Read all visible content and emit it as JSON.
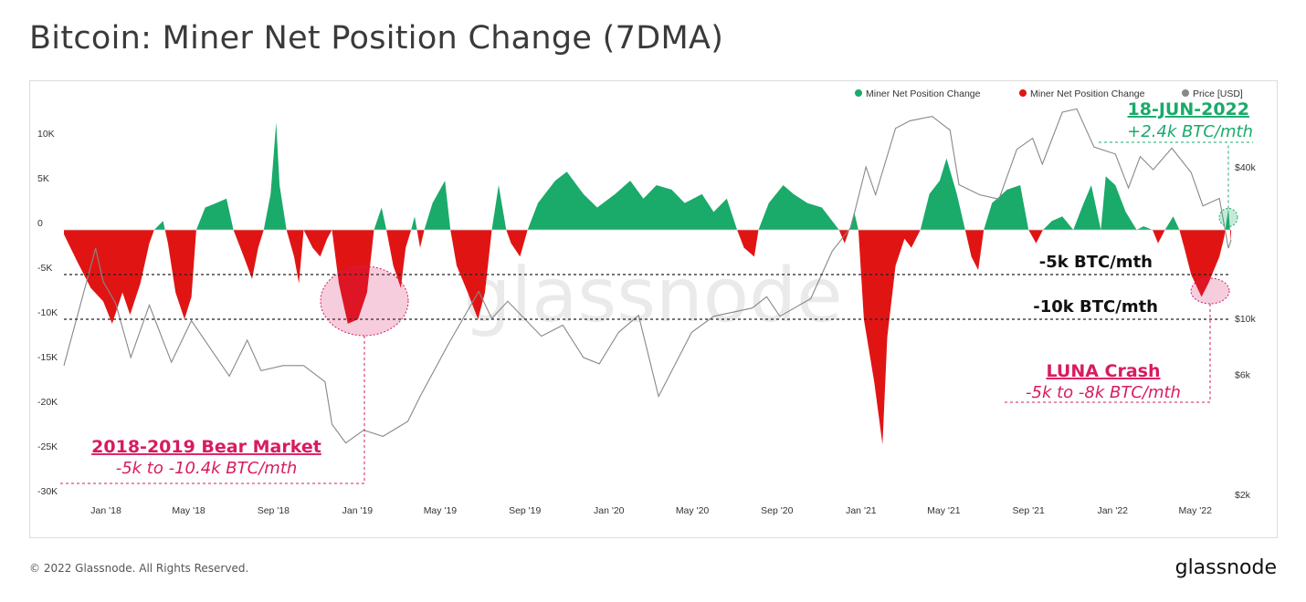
{
  "title": "Bitcoin: Miner Net Position Change (7DMA)",
  "footer": {
    "copyright": "© 2022 Glassnode. All Rights Reserved.",
    "logo": "glassnode"
  },
  "watermark": "glassnode",
  "colors": {
    "positive": "#1aaa6a",
    "negative": "#e11414",
    "price": "#888888",
    "accent_pink": "#d81b60",
    "accent_green": "#1aaa6a"
  },
  "chart_data": {
    "type": "area",
    "title": "Bitcoin: Miner Net Position Change (7DMA)",
    "legend": [
      {
        "name": "Miner Net Position Change",
        "color": "#1aaa6a"
      },
      {
        "name": "Miner Net Position Change",
        "color": "#e11414"
      },
      {
        "name": "Price [USD]",
        "color": "#888888"
      }
    ],
    "legend_position": "top-right",
    "x_range": [
      "2017-11-01",
      "2022-06-22"
    ],
    "x_ticks": [
      "Jan '18",
      "May '18",
      "Sep '18",
      "Jan '19",
      "May '19",
      "Sep '19",
      "Jan '20",
      "May '20",
      "Sep '20",
      "Jan '21",
      "May '21",
      "Sep '21",
      "Jan '22",
      "May '22"
    ],
    "y_left": {
      "range": [
        -30000,
        11000
      ],
      "ticks": [
        "10K",
        "5K",
        "0",
        "-5K",
        "-10K",
        "-15K",
        "-20K",
        "-25K",
        "-30K"
      ]
    },
    "y_right": {
      "scale": "log",
      "ticks": [
        "$40k",
        "$10k",
        "$6k",
        "$2k"
      ]
    },
    "series": [
      {
        "name": "Miner Net Position Change",
        "unit": "BTC/month",
        "points": [
          [
            "2017-11-01",
            -500
          ],
          [
            "2017-11-20",
            -3500
          ],
          [
            "2017-12-10",
            -6500
          ],
          [
            "2017-12-28",
            -8000
          ],
          [
            "2018-01-10",
            -10500
          ],
          [
            "2018-01-25",
            -7000
          ],
          [
            "2018-02-05",
            -9500
          ],
          [
            "2018-02-20",
            -6000
          ],
          [
            "2018-03-05",
            -1500
          ],
          [
            "2018-03-12",
            0
          ],
          [
            "2018-03-25",
            1000
          ],
          [
            "2018-04-01",
            -1500
          ],
          [
            "2018-04-12",
            -7000
          ],
          [
            "2018-04-25",
            -10000
          ],
          [
            "2018-05-05",
            -7500
          ],
          [
            "2018-05-12",
            0
          ],
          [
            "2018-05-25",
            2500
          ],
          [
            "2018-06-10",
            3000
          ],
          [
            "2018-06-25",
            3500
          ],
          [
            "2018-07-05",
            0
          ],
          [
            "2018-07-20",
            -3000
          ],
          [
            "2018-08-01",
            -5500
          ],
          [
            "2018-08-10",
            -2000
          ],
          [
            "2018-08-18",
            0
          ],
          [
            "2018-08-28",
            4000
          ],
          [
            "2018-09-05",
            12000
          ],
          [
            "2018-09-10",
            5000
          ],
          [
            "2018-09-20",
            0
          ],
          [
            "2018-10-01",
            -3000
          ],
          [
            "2018-10-08",
            -6000
          ],
          [
            "2018-10-15",
            0
          ],
          [
            "2018-10-28",
            -2000
          ],
          [
            "2018-11-08",
            -3000
          ],
          [
            "2018-11-18",
            -1000
          ],
          [
            "2018-11-25",
            0
          ],
          [
            "2018-12-05",
            -6000
          ],
          [
            "2018-12-18",
            -10500
          ],
          [
            "2019-01-02",
            -10000
          ],
          [
            "2019-01-15",
            -7000
          ],
          [
            "2019-01-25",
            0
          ],
          [
            "2019-02-05",
            2500
          ],
          [
            "2019-02-12",
            0
          ],
          [
            "2019-02-22",
            -4000
          ],
          [
            "2019-03-05",
            -6500
          ],
          [
            "2019-03-12",
            -2000
          ],
          [
            "2019-03-20",
            0
          ],
          [
            "2019-03-25",
            1500
          ],
          [
            "2019-04-02",
            -2000
          ],
          [
            "2019-04-08",
            0
          ],
          [
            "2019-04-20",
            3000
          ],
          [
            "2019-05-08",
            5500
          ],
          [
            "2019-05-16",
            0
          ],
          [
            "2019-05-25",
            -4000
          ],
          [
            "2019-06-10",
            -7000
          ],
          [
            "2019-06-25",
            -10000
          ],
          [
            "2019-07-05",
            -7000
          ],
          [
            "2019-07-15",
            0
          ],
          [
            "2019-07-25",
            5000
          ],
          [
            "2019-08-05",
            0
          ],
          [
            "2019-08-12",
            -1500
          ],
          [
            "2019-08-25",
            -3000
          ],
          [
            "2019-09-05",
            0
          ],
          [
            "2019-09-20",
            3000
          ],
          [
            "2019-10-15",
            5500
          ],
          [
            "2019-11-01",
            6500
          ],
          [
            "2019-11-25",
            4000
          ],
          [
            "2019-12-15",
            2500
          ],
          [
            "2020-01-10",
            4000
          ],
          [
            "2020-02-01",
            5500
          ],
          [
            "2020-02-20",
            3500
          ],
          [
            "2020-03-10",
            5000
          ],
          [
            "2020-04-01",
            4500
          ],
          [
            "2020-04-20",
            3000
          ],
          [
            "2020-05-15",
            4000
          ],
          [
            "2020-06-01",
            2000
          ],
          [
            "2020-06-20",
            3500
          ],
          [
            "2020-07-05",
            0
          ],
          [
            "2020-07-15",
            -2000
          ],
          [
            "2020-07-30",
            -3000
          ],
          [
            "2020-08-05",
            0
          ],
          [
            "2020-08-20",
            3000
          ],
          [
            "2020-09-10",
            5000
          ],
          [
            "2020-09-25",
            4000
          ],
          [
            "2020-10-15",
            3000
          ],
          [
            "2020-11-05",
            2500
          ],
          [
            "2020-11-20",
            1000
          ],
          [
            "2020-11-30",
            0
          ],
          [
            "2020-12-08",
            -1500
          ],
          [
            "2020-12-15",
            0
          ],
          [
            "2020-12-22",
            2000
          ],
          [
            "2020-12-28",
            0
          ],
          [
            "2021-01-05",
            -10000
          ],
          [
            "2021-01-20",
            -17000
          ],
          [
            "2021-02-01",
            -24000
          ],
          [
            "2021-02-08",
            -12000
          ],
          [
            "2021-02-20",
            -4000
          ],
          [
            "2021-03-05",
            -1000
          ],
          [
            "2021-03-15",
            -2000
          ],
          [
            "2021-03-28",
            0
          ],
          [
            "2021-04-10",
            4000
          ],
          [
            "2021-04-25",
            5500
          ],
          [
            "2021-05-05",
            8000
          ],
          [
            "2021-05-20",
            4000
          ],
          [
            "2021-06-01",
            0
          ],
          [
            "2021-06-10",
            -3000
          ],
          [
            "2021-06-20",
            -4500
          ],
          [
            "2021-06-28",
            0
          ],
          [
            "2021-07-10",
            3000
          ],
          [
            "2021-08-01",
            4500
          ],
          [
            "2021-08-20",
            5000
          ],
          [
            "2021-09-01",
            0
          ],
          [
            "2021-09-12",
            -1500
          ],
          [
            "2021-09-22",
            0
          ],
          [
            "2021-10-05",
            1000
          ],
          [
            "2021-10-20",
            1500
          ],
          [
            "2021-11-05",
            0
          ],
          [
            "2021-11-20",
            3000
          ],
          [
            "2021-12-01",
            5000
          ],
          [
            "2021-12-15",
            0
          ],
          [
            "2021-12-22",
            6000
          ],
          [
            "2022-01-05",
            5000
          ],
          [
            "2022-01-20",
            2000
          ],
          [
            "2022-02-05",
            0
          ],
          [
            "2022-02-15",
            400
          ],
          [
            "2022-02-28",
            0
          ],
          [
            "2022-03-08",
            -1500
          ],
          [
            "2022-03-18",
            0
          ],
          [
            "2022-03-30",
            1500
          ],
          [
            "2022-04-08",
            0
          ],
          [
            "2022-04-15",
            -2000
          ],
          [
            "2022-04-25",
            -5000
          ],
          [
            "2022-05-10",
            -7500
          ],
          [
            "2022-05-20",
            -6000
          ],
          [
            "2022-06-05",
            -3000
          ],
          [
            "2022-06-12",
            -800
          ],
          [
            "2022-06-18",
            2400
          ],
          [
            "2022-06-22",
            -1500
          ]
        ]
      },
      {
        "name": "Price [USD]",
        "unit": "USD",
        "points": [
          [
            "2017-11-01",
            6500
          ],
          [
            "2017-12-17",
            19000
          ],
          [
            "2017-12-28",
            14000
          ],
          [
            "2018-01-15",
            11500
          ],
          [
            "2018-02-06",
            7000
          ],
          [
            "2018-03-05",
            11300
          ],
          [
            "2018-04-06",
            6700
          ],
          [
            "2018-05-05",
            9800
          ],
          [
            "2018-06-29",
            5900
          ],
          [
            "2018-07-25",
            8200
          ],
          [
            "2018-08-14",
            6200
          ],
          [
            "2018-09-15",
            6500
          ],
          [
            "2018-10-15",
            6500
          ],
          [
            "2018-11-15",
            5600
          ],
          [
            "2018-11-25",
            3800
          ],
          [
            "2018-12-15",
            3200
          ],
          [
            "2019-01-10",
            3600
          ],
          [
            "2019-02-07",
            3400
          ],
          [
            "2019-03-15",
            3900
          ],
          [
            "2019-04-02",
            4900
          ],
          [
            "2019-05-14",
            8000
          ],
          [
            "2019-06-26",
            12800
          ],
          [
            "2019-07-15",
            10000
          ],
          [
            "2019-08-07",
            11700
          ],
          [
            "2019-09-25",
            8500
          ],
          [
            "2019-10-26",
            9400
          ],
          [
            "2019-11-25",
            7000
          ],
          [
            "2019-12-18",
            6600
          ],
          [
            "2020-01-15",
            8800
          ],
          [
            "2020-02-13",
            10300
          ],
          [
            "2020-03-13",
            4900
          ],
          [
            "2020-04-30",
            8800
          ],
          [
            "2020-06-01",
            10200
          ],
          [
            "2020-07-27",
            11000
          ],
          [
            "2020-08-17",
            12200
          ],
          [
            "2020-09-05",
            10200
          ],
          [
            "2020-10-20",
            12000
          ],
          [
            "2020-11-20",
            18500
          ],
          [
            "2020-12-17",
            23000
          ],
          [
            "2021-01-08",
            40000
          ],
          [
            "2021-01-22",
            31000
          ],
          [
            "2021-02-20",
            57000
          ],
          [
            "2021-03-13",
            61000
          ],
          [
            "2021-04-14",
            63500
          ],
          [
            "2021-05-10",
            56000
          ],
          [
            "2021-05-23",
            34000
          ],
          [
            "2021-06-22",
            31000
          ],
          [
            "2021-07-20",
            29800
          ],
          [
            "2021-08-15",
            47000
          ],
          [
            "2021-09-07",
            52000
          ],
          [
            "2021-09-21",
            41000
          ],
          [
            "2021-10-20",
            66000
          ],
          [
            "2021-11-10",
            68000
          ],
          [
            "2021-12-05",
            48000
          ],
          [
            "2022-01-05",
            45000
          ],
          [
            "2022-01-24",
            33000
          ],
          [
            "2022-02-10",
            44000
          ],
          [
            "2022-03-01",
            39000
          ],
          [
            "2022-03-28",
            47500
          ],
          [
            "2022-04-25",
            38000
          ],
          [
            "2022-05-12",
            28000
          ],
          [
            "2022-06-05",
            30000
          ],
          [
            "2022-06-18",
            19000
          ],
          [
            "2022-06-22",
            20500
          ]
        ]
      }
    ],
    "reference_lines": [
      {
        "y": -5000,
        "label": "-5k BTC/mth"
      },
      {
        "y": -10000,
        "label": "-10k BTC/mth"
      }
    ],
    "annotations": [
      {
        "title": "18-JUN-2022",
        "subtitle": "+2.4k BTC/mth",
        "date": "2022-06-18",
        "value": 2400
      },
      {
        "title": "LUNA Crash",
        "subtitle": "-5k to -8k BTC/mth",
        "date": "2022-05-15",
        "value": -7000
      },
      {
        "title": "2018-2019 Bear Market",
        "subtitle": "-5k to -10.4k BTC/mth",
        "date": "2018-12-28",
        "value": -8000
      }
    ]
  }
}
